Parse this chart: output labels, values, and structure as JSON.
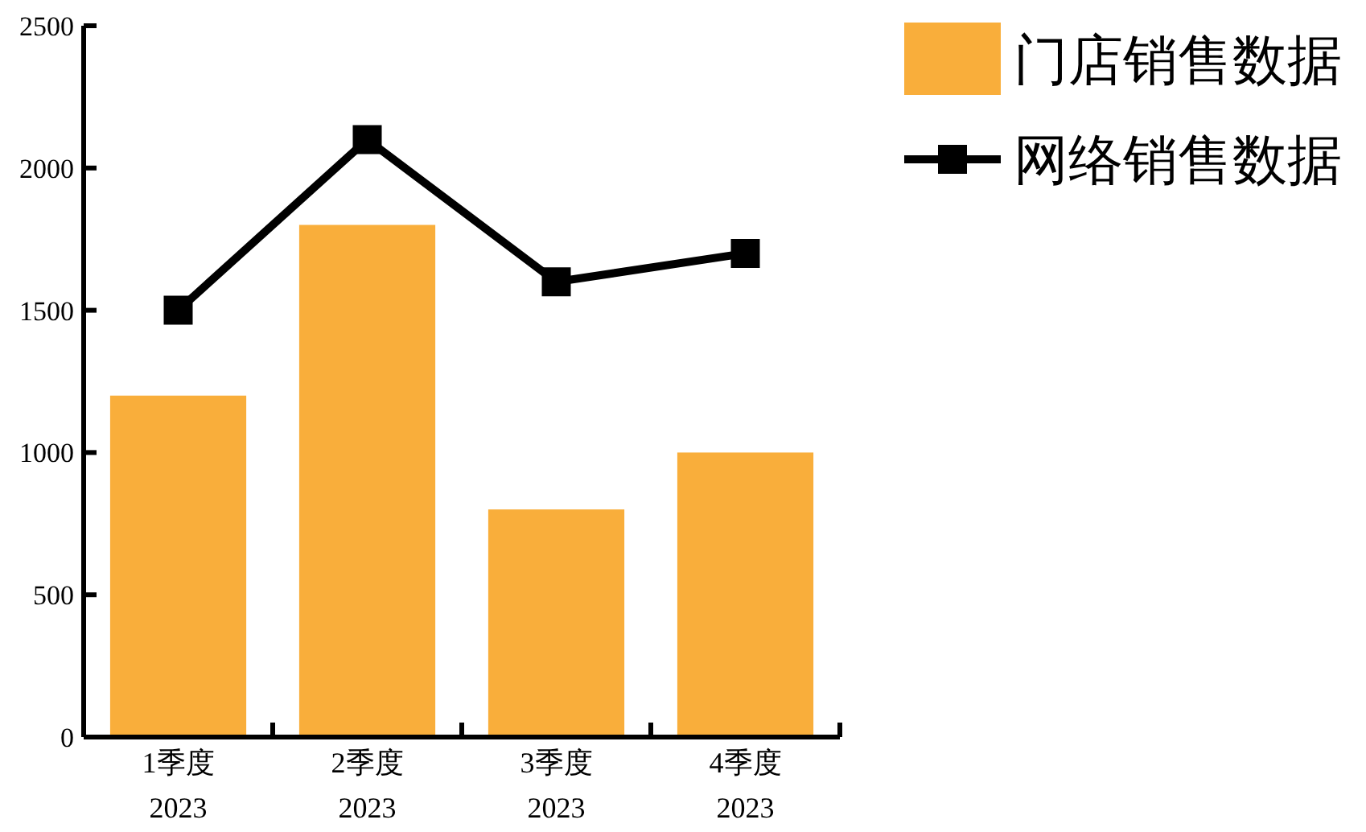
{
  "chart_data": {
    "type": "bar",
    "categories": [
      "1季度\n2023",
      "2季度\n2023",
      "3季度\n2023",
      "4季度\n2023"
    ],
    "series": [
      {
        "name": "门店销售数据",
        "color": "#f9ae3b",
        "values": [
          1200,
          1800,
          800,
          1000
        ]
      },
      {
        "name": "网络销售数据",
        "type": "line",
        "color": "#000000",
        "values": [
          1500,
          2100,
          1600,
          1700
        ],
        "marker": "square"
      }
    ],
    "ylim": [
      0,
      2500
    ],
    "yticks": [
      0,
      500,
      1000,
      1500,
      2000,
      2500
    ],
    "grid": false,
    "legend": "top right"
  }
}
